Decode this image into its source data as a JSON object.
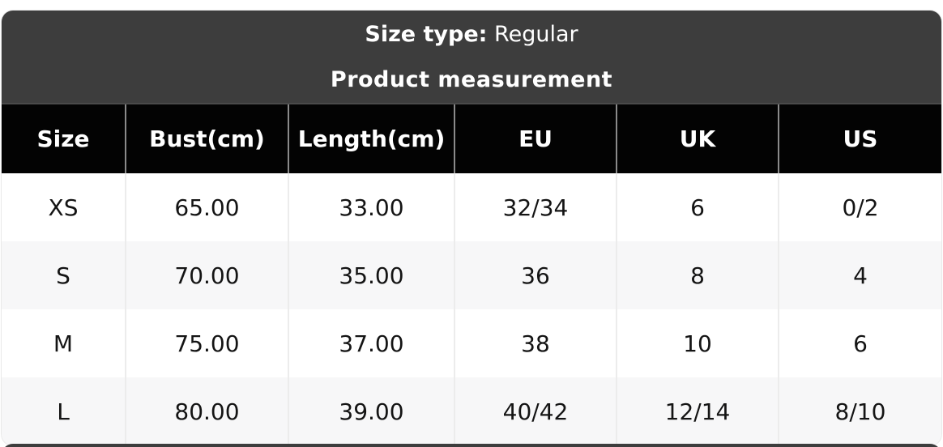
{
  "title_bar": {
    "size_type_label": "Size type:",
    "size_type_value": "Regular",
    "subtitle": "Product measurement"
  },
  "table": {
    "headers": [
      "Size",
      "Bust(cm)",
      "Length(cm)",
      "EU",
      "UK",
      "US"
    ],
    "rows": [
      [
        "XS",
        "65.00",
        "33.00",
        "32/34",
        "6",
        "0/2"
      ],
      [
        "S",
        "70.00",
        "35.00",
        "36",
        "8",
        "4"
      ],
      [
        "M",
        "75.00",
        "37.00",
        "38",
        "10",
        "6"
      ],
      [
        "L",
        "80.00",
        "39.00",
        "40/42",
        "12/14",
        "8/10"
      ]
    ]
  },
  "colors": {
    "header_bg": "#3d3d3d",
    "column_header_bg": "#030303",
    "row_bg": "#ffffff",
    "row_alt_bg": "#f7f7f8",
    "header_text": "#ffffff",
    "body_text": "#141414",
    "header_separator": "#8a8a8a",
    "body_separator": "#ececec",
    "page_bg": "#ffffff"
  }
}
